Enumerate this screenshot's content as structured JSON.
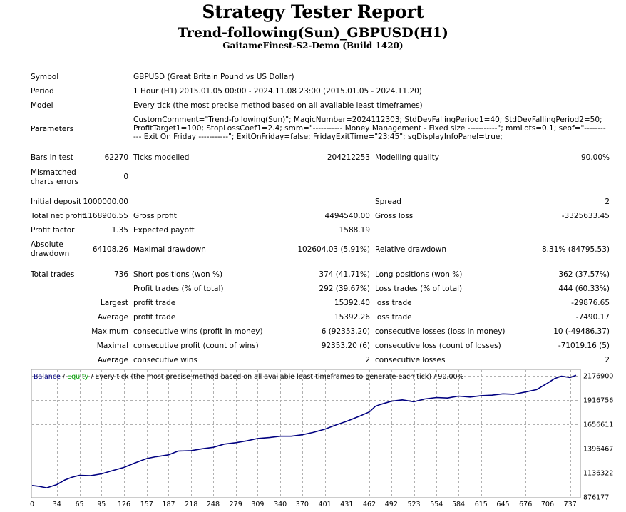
{
  "header": {
    "title": "Strategy Tester Report",
    "subtitle": "Trend-following(Sun)_GBPUSD(H1)",
    "server": "GaitameFinest-S2-Demo (Build 1420)"
  },
  "info": {
    "symbol_label": "Symbol",
    "symbol": "GBPUSD (Great Britain Pound vs US Dollar)",
    "period_label": "Period",
    "period": "1 Hour (H1) 2015.01.05 00:00 - 2024.11.08 23:00 (2015.01.05 - 2024.11.20)",
    "model_label": "Model",
    "model": "Every tick (the most precise method based on all available least timeframes)",
    "parameters_label": "Parameters",
    "parameters": "CustomComment=\"Trend-following(Sun)\"; MagicNumber=2024112303; StdDevFallingPeriod1=40; StdDevFallingPeriod2=50; ProfitTarget1=100; StopLossCoef1=2.4; smm=\"----------- Money Management - Fixed size -----------\"; mmLots=0.1; seof=\"----------- Exit On Friday -----------\"; ExitOnFriday=false; FridayExitTime=\"23:45\"; sqDisplayInfoPanel=true;"
  },
  "stats": {
    "bars_label": "Bars in test",
    "bars": "62270",
    "ticks_label": "Ticks modelled",
    "ticks": "204212253",
    "quality_label": "Modelling quality",
    "quality": "90.00%",
    "mismatch_label1": "Mismatched",
    "mismatch_label2": "charts errors",
    "mismatch": "0",
    "deposit_label": "Initial deposit",
    "deposit": "1000000.00",
    "spread_label": "Spread",
    "spread": "2",
    "netprofit_label": "Total net profit",
    "netprofit": "1168906.55",
    "grossprofit_label": "Gross profit",
    "grossprofit": "4494540.00",
    "grossloss_label": "Gross loss",
    "grossloss": "-3325633.45",
    "pf_label": "Profit factor",
    "pf": "1.35",
    "payoff_label": "Expected payoff",
    "payoff": "1588.19",
    "absdd_label1": "Absolute",
    "absdd_label2": "drawdown",
    "absdd": "64108.26",
    "maxdd_label": "Maximal drawdown",
    "maxdd": "102604.03 (5.91%)",
    "reldd_label": "Relative drawdown",
    "reldd": "8.31% (84795.53)",
    "trades_label": "Total trades",
    "trades": "736",
    "short_label": "Short positions (won %)",
    "short": "374 (41.71%)",
    "long_label": "Long positions (won %)",
    "long": "362 (37.57%)",
    "pt_label": "Profit trades (% of total)",
    "pt": "292 (39.67%)",
    "lt_label": "Loss trades (% of total)",
    "lt": "444 (60.33%)",
    "largest": "Largest",
    "avg1": "Average",
    "maximum": "Maximum",
    "maximal": "Maximal",
    "avg2": "Average",
    "lp_label": "profit trade",
    "lp": "15392.40",
    "ll_label": "loss trade",
    "ll": "-29876.65",
    "ap_label": "profit trade",
    "ap": "15392.26",
    "al_label": "loss trade",
    "al": "-7490.17",
    "mcw_label": "consecutive wins (profit in money)",
    "mcw": "6 (92353.20)",
    "mcl_label": "consecutive losses (loss in money)",
    "mcl": "10 (-49486.37)",
    "mcp_label": "consecutive profit (count of wins)",
    "mcp": "92353.20 (6)",
    "mclc_label": "consecutive loss (count of losses)",
    "mclc": "-71019.16 (5)",
    "acw_label": "consecutive wins",
    "acw": "2",
    "acl_label": "consecutive losses",
    "acl": "2"
  },
  "chart_data": {
    "type": "line",
    "legend": {
      "balance": "Balance",
      "slash": " / ",
      "equity": "Equity",
      "rest": " / Every tick (the most precise method based on all available least timeframes to generate each tick) / 90.00%"
    },
    "x_ticks": [
      0,
      34,
      65,
      95,
      126,
      157,
      187,
      218,
      248,
      279,
      309,
      340,
      370,
      401,
      431,
      462,
      492,
      523,
      554,
      584,
      615,
      645,
      676,
      706,
      737
    ],
    "y_ticks": [
      876177,
      1136322,
      1396467,
      1656611,
      1916756,
      2176900
    ],
    "xlim": [
      0,
      750
    ],
    "ylim": [
      876177,
      2240000
    ],
    "grid": true,
    "colors": {
      "balance": "#000080",
      "equity": "#00a000",
      "grid": "#b0b0b0"
    },
    "series": [
      {
        "name": "Balance",
        "x": [
          0,
          10,
          20,
          34,
          45,
          55,
          65,
          80,
          95,
          110,
          126,
          140,
          157,
          170,
          187,
          200,
          218,
          233,
          248,
          263,
          279,
          294,
          309,
          325,
          340,
          355,
          370,
          385,
          401,
          416,
          431,
          447,
          462,
          470,
          477,
          492,
          507,
          523,
          538,
          554,
          569,
          584,
          600,
          615,
          630,
          645,
          660,
          676,
          691,
          706,
          716,
          725,
          737,
          745
        ],
        "y": [
          1000000,
          990000,
          975000,
          1010000,
          1060000,
          1090000,
          1110000,
          1105000,
          1125000,
          1160000,
          1195000,
          1240000,
          1290000,
          1310000,
          1330000,
          1370000,
          1375000,
          1395000,
          1410000,
          1445000,
          1460000,
          1480000,
          1505000,
          1515000,
          1530000,
          1530000,
          1545000,
          1570000,
          1605000,
          1650000,
          1690000,
          1740000,
          1790000,
          1850000,
          1870000,
          1905000,
          1920000,
          1900000,
          1930000,
          1945000,
          1940000,
          1960000,
          1950000,
          1965000,
          1970000,
          1985000,
          1980000,
          2005000,
          2030000,
          2100000,
          2150000,
          2175000,
          2160000,
          2185000
        ]
      }
    ]
  }
}
